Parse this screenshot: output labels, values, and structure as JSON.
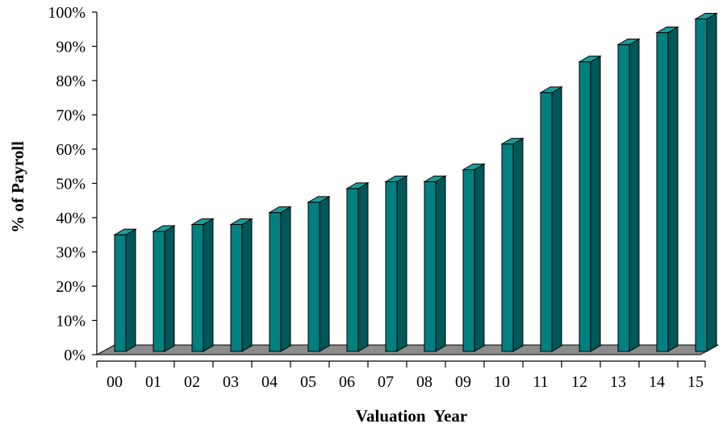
{
  "chart_data": {
    "type": "bar",
    "title": "",
    "xlabel": "Valuation  Year",
    "ylabel": "% of Payroll",
    "categories": [
      "00",
      "01",
      "02",
      "03",
      "04",
      "05",
      "06",
      "07",
      "08",
      "09",
      "10",
      "11",
      "12",
      "13",
      "14",
      "15"
    ],
    "values": [
      35,
      36,
      38,
      38,
      41.5,
      44.5,
      48.5,
      50.5,
      50.5,
      54,
      61.5,
      76.5,
      85.5,
      90.5,
      94,
      98
    ],
    "ylim": [
      0,
      100
    ],
    "yticks": [
      0,
      10,
      20,
      30,
      40,
      50,
      60,
      70,
      80,
      90,
      100
    ],
    "ytick_labels": [
      "0%",
      "10%",
      "20%",
      "30%",
      "40%",
      "50%",
      "60%",
      "70%",
      "80%",
      "90%",
      "100%"
    ],
    "grid": false,
    "legend": "none",
    "style": "3d-columns",
    "colors": {
      "bar_front": "#008080",
      "bar_side": "#005757",
      "bar_top": "#1a9c98",
      "floor": "#8c8c8c"
    }
  }
}
